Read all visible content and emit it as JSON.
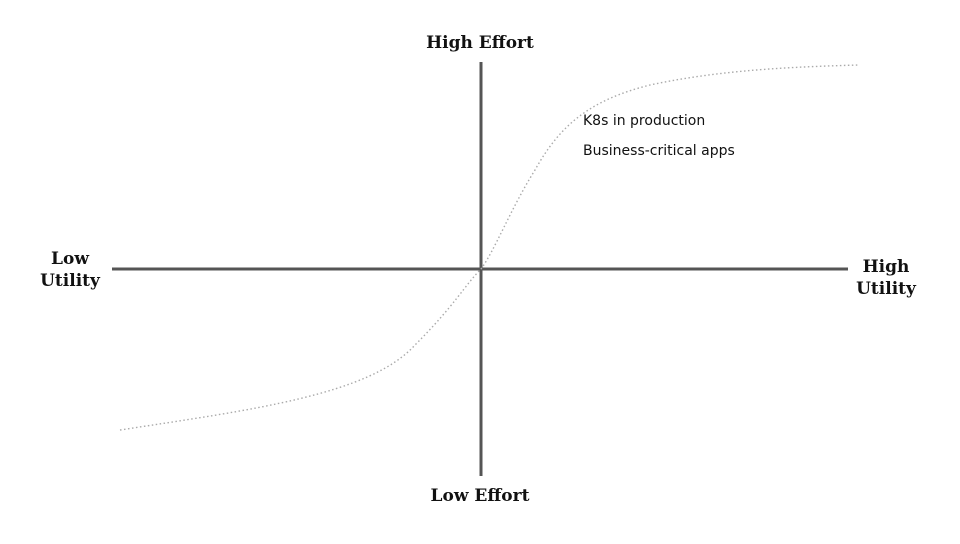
{
  "axes": {
    "top": "High Effort",
    "bottom": "Low Effort",
    "left_line1": "Low",
    "left_line2": "Utility",
    "right_line1": "High",
    "right_line2": "Utility"
  },
  "annotations": [
    "K8s in production",
    "Business-critical apps"
  ],
  "colors": {
    "axis": "#555555",
    "curve": "#aaaaaa",
    "text": "#111111"
  }
}
